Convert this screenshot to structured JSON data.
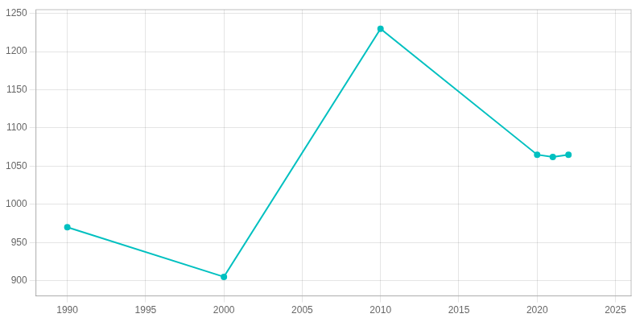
{
  "chart_data": {
    "type": "line",
    "x": [
      1990,
      2000,
      2010,
      2020,
      2021,
      2022
    ],
    "values": [
      970,
      905,
      1230,
      1065,
      1062,
      1065
    ],
    "color": "#00C0C0",
    "marker": "circle",
    "xlim": [
      1988,
      2026
    ],
    "ylim": [
      880,
      1255
    ],
    "xticks": [
      1990,
      1995,
      2000,
      2005,
      2010,
      2015,
      2020,
      2025
    ],
    "yticks": [
      900,
      950,
      1000,
      1050,
      1100,
      1150,
      1200,
      1250
    ],
    "grid": true
  }
}
